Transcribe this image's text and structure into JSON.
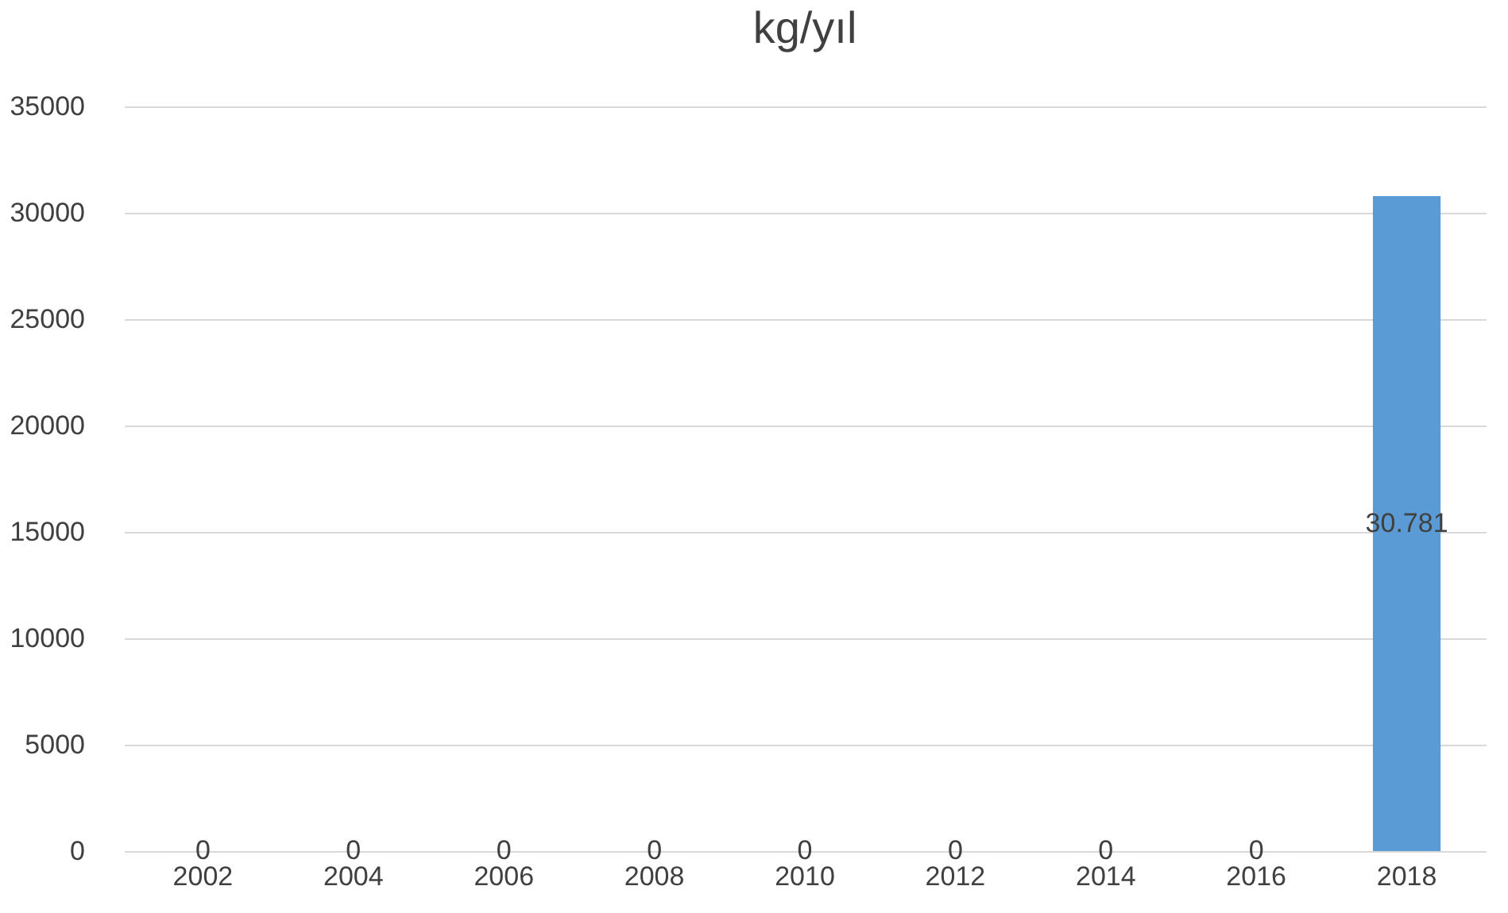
{
  "chart_data": {
    "type": "bar",
    "title": "kg/yıl",
    "categories": [
      "2002",
      "2004",
      "2006",
      "2008",
      "2010",
      "2012",
      "2014",
      "2016",
      "2018"
    ],
    "values": [
      0,
      0,
      0,
      0,
      0,
      0,
      0,
      0,
      30781
    ],
    "value_labels": [
      "0",
      "0",
      "0",
      "0",
      "0",
      "0",
      "0",
      "0",
      "30.781"
    ],
    "color": "#5b9bd5",
    "ylim": [
      0,
      35000
    ],
    "yticks": [
      0,
      5000,
      10000,
      15000,
      20000,
      25000,
      30000,
      35000
    ],
    "grid": "y"
  }
}
